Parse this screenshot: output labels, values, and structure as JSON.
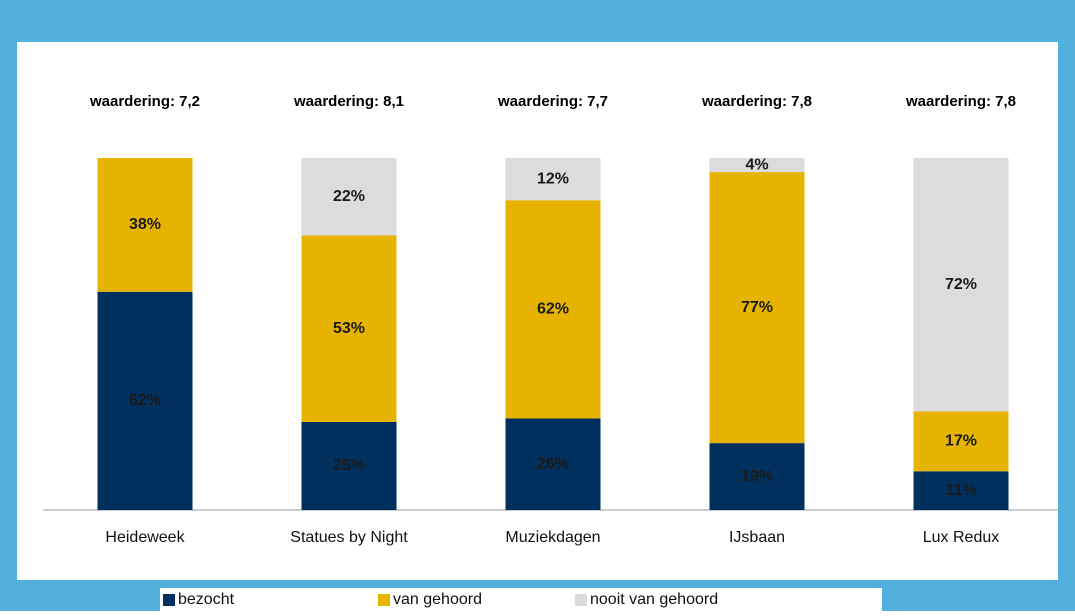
{
  "chart_data": {
    "type": "stacked_bar",
    "categories": [
      "Heideweek",
      "Statues by Night",
      "Muziekdagen",
      "IJsbaan",
      "Lux Redux"
    ],
    "annotations": [
      "waardering: 7,2",
      "waardering: 8,1",
      "waardering: 7,7",
      "waardering: 7,8",
      "waardering: 7,8"
    ],
    "series": [
      {
        "name": "bezocht",
        "color": "#00305e",
        "values": [
          62,
          25,
          26,
          19,
          11
        ],
        "value_labels": [
          "62%",
          "25%",
          "26%",
          "19%",
          "11%"
        ]
      },
      {
        "name": "van gehoord",
        "color": "#e6b400",
        "values": [
          38,
          53,
          62,
          77,
          17
        ],
        "value_labels": [
          "38%",
          "53%",
          "62%",
          "77%",
          "17%"
        ]
      },
      {
        "name": "nooit van gehoord",
        "color": "#dcdcdc",
        "values": [
          null,
          22,
          12,
          4,
          72
        ],
        "value_labels": [
          null,
          "22%",
          "12%",
          "4%",
          "72%"
        ]
      }
    ],
    "ylim": [
      0,
      100
    ],
    "legend": "bottom"
  }
}
